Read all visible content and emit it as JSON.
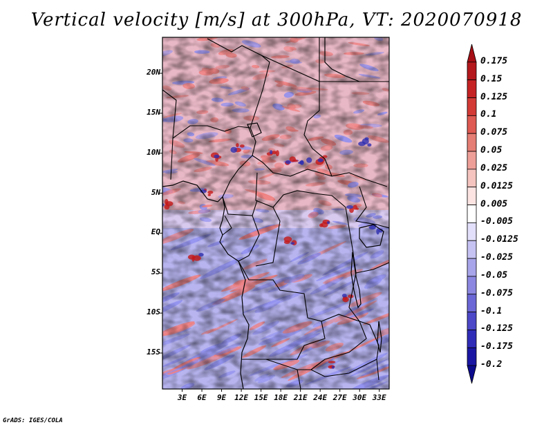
{
  "title": "Vertical velocity [m/s] at 300hPa, VT: 2020070918",
  "credit": "GrADS: IGES/COLA",
  "map": {
    "lat_labels": [
      "20N",
      "15N",
      "10N",
      "5N",
      "EQ",
      "5S",
      "10S",
      "15S"
    ],
    "lon_labels": [
      "3E",
      "6E",
      "9E",
      "12E",
      "15E",
      "18E",
      "21E",
      "24E",
      "27E",
      "30E",
      "33E"
    ],
    "lat_values": [
      20,
      15,
      10,
      5,
      0,
      -5,
      -10,
      -15
    ],
    "lon_values": [
      3,
      6,
      9,
      12,
      15,
      18,
      21,
      24,
      27,
      30,
      33
    ],
    "extent": {
      "lon_min": 0,
      "lon_max": 34.5,
      "lat_min": -19.5,
      "lat_max": 24.5
    }
  },
  "colorbar": {
    "labels": [
      "0.175",
      "0.15",
      "0.125",
      "0.1",
      "0.075",
      "0.05",
      "0.025",
      "0.0125",
      "0.005",
      "-0.005",
      "-0.0125",
      "-0.025",
      "-0.05",
      "-0.075",
      "-0.1",
      "-0.125",
      "-0.175",
      "-0.2"
    ],
    "colors": [
      "#a50f15",
      "#b4181c",
      "#c52224",
      "#d33a35",
      "#de5a52",
      "#e57e74",
      "#ee9f98",
      "#f5c4bf",
      "#fbe4e2",
      "#ffffff",
      "#e2e0fa",
      "#c6c3f3",
      "#a9a5ea",
      "#8c87e0",
      "#6c67d6",
      "#4c48c8",
      "#2f2cb8",
      "#1a16a3",
      "#0c0a8c"
    ]
  },
  "field_colors": {
    "red": "#f08080",
    "blue": "#8f8ff0",
    "dark_red": "#c41818",
    "dark_blue": "#3030b0"
  }
}
